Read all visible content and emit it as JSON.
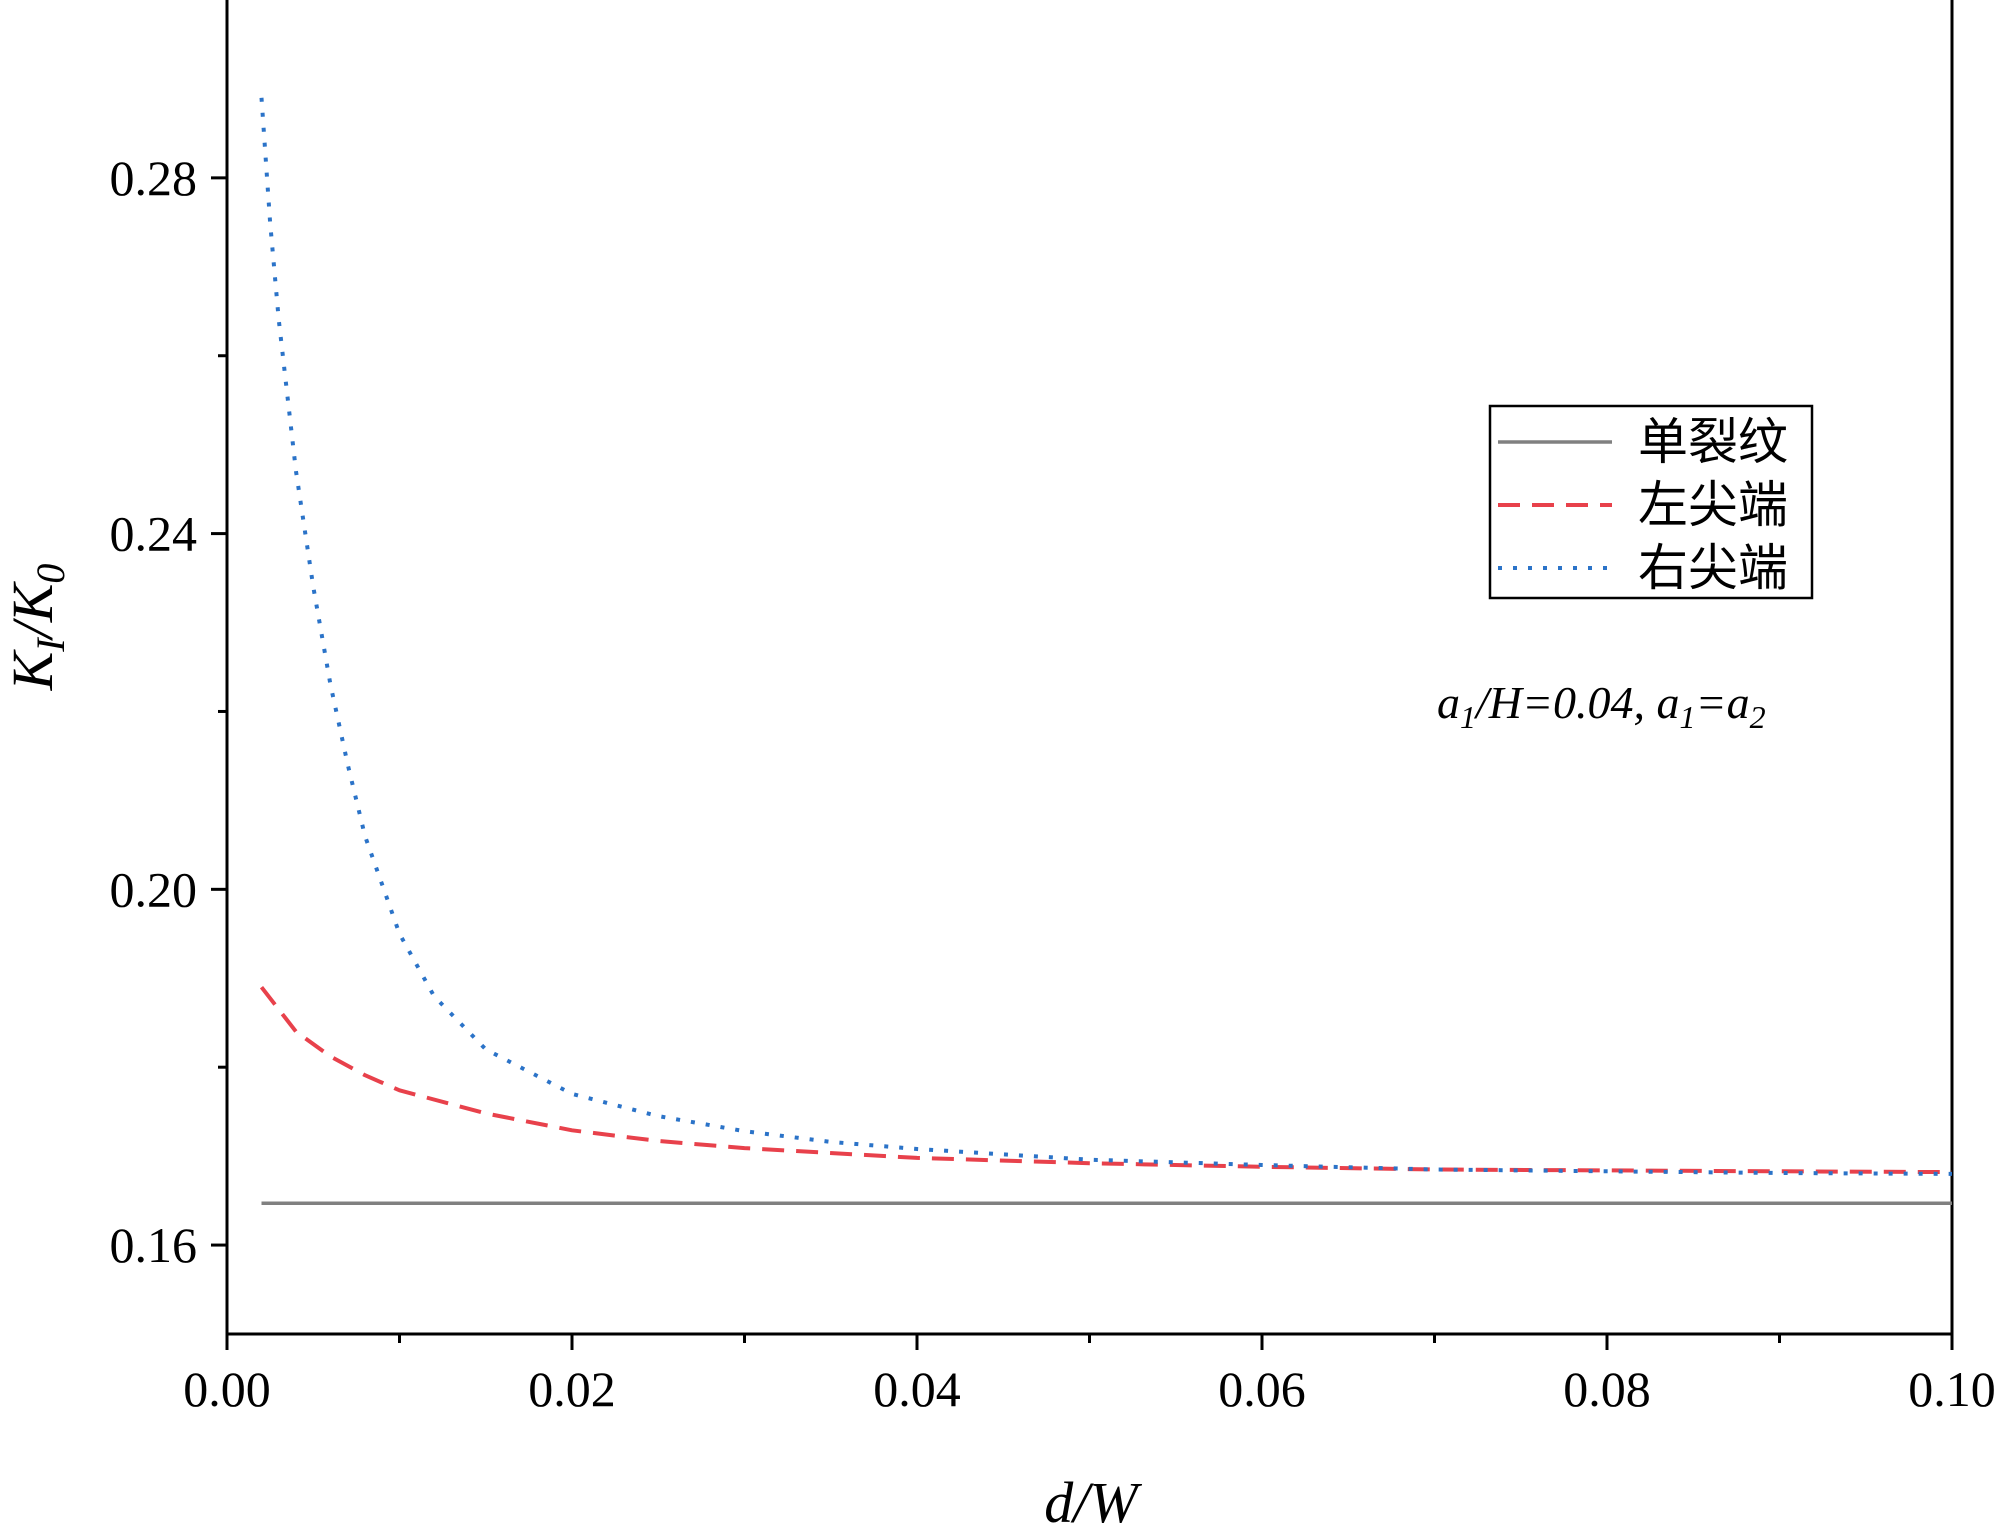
{
  "chart_data": {
    "type": "line",
    "xlabel": "d/W",
    "ylabel_main": "K",
    "ylabel_sub1": "I",
    "ylabel_slash": "/K",
    "ylabel_sub2": "0",
    "xlim": [
      0.0,
      0.1
    ],
    "ylim": [
      0.15,
      0.3
    ],
    "x_ticks": [
      0.0,
      0.02,
      0.04,
      0.06,
      0.08,
      0.1
    ],
    "x_tick_labels": [
      "0.00",
      "0.02",
      "0.04",
      "0.06",
      "0.08",
      "0.10"
    ],
    "y_ticks": [
      0.16,
      0.2,
      0.24,
      0.28
    ],
    "y_tick_labels": [
      "0.16",
      "0.20",
      "0.24",
      "0.28"
    ],
    "grid": false,
    "legend_position": "right",
    "annotation": {
      "p1": "a",
      "p1_sub": "1",
      "p2": "/H=0.04, ",
      "p3": "a",
      "p3_sub": "1",
      "p4": "=",
      "p5": "a",
      "p5_sub": "2"
    },
    "series": [
      {
        "name": "单裂纹",
        "style": "solid",
        "color": "#808080",
        "x": [
          0.002,
          0.1
        ],
        "y": [
          0.1647,
          0.1647
        ]
      },
      {
        "name": "左尖端",
        "style": "dashed",
        "color": "#e8414b",
        "x": [
          0.002,
          0.004,
          0.006,
          0.008,
          0.01,
          0.015,
          0.02,
          0.025,
          0.03,
          0.04,
          0.05,
          0.06,
          0.07,
          0.08,
          0.09,
          0.1
        ],
        "y": [
          0.189,
          0.184,
          0.1812,
          0.1791,
          0.1774,
          0.1748,
          0.1729,
          0.1717,
          0.1709,
          0.1698,
          0.1692,
          0.1688,
          0.1685,
          0.1684,
          0.1683,
          0.1682
        ]
      },
      {
        "name": "右尖端",
        "style": "dotted",
        "color": "#2b73c8",
        "x": [
          0.002,
          0.0025,
          0.003,
          0.004,
          0.005,
          0.006,
          0.007,
          0.008,
          0.01,
          0.012,
          0.015,
          0.02,
          0.025,
          0.03,
          0.035,
          0.04,
          0.05,
          0.06,
          0.07,
          0.08,
          0.09,
          0.1
        ],
        "y": [
          0.289,
          0.275,
          0.264,
          0.247,
          0.234,
          0.223,
          0.214,
          0.206,
          0.195,
          0.188,
          0.182,
          0.177,
          0.1745,
          0.1728,
          0.1716,
          0.1708,
          0.1696,
          0.169,
          0.1685,
          0.1683,
          0.1681,
          0.168
        ]
      }
    ]
  }
}
